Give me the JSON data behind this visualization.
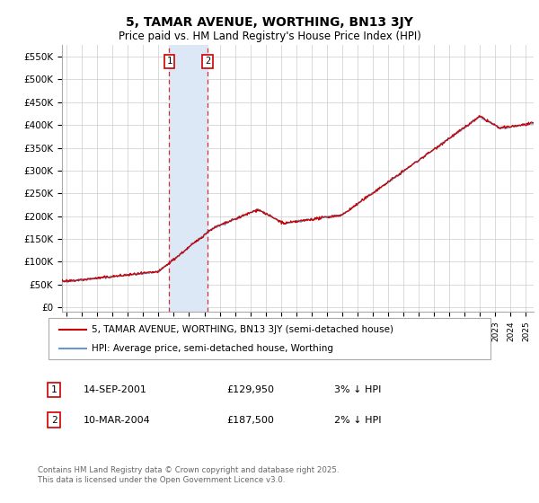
{
  "title": "5, TAMAR AVENUE, WORTHING, BN13 3JY",
  "subtitle": "Price paid vs. HM Land Registry's House Price Index (HPI)",
  "ylabel_ticks": [
    "£0",
    "£50K",
    "£100K",
    "£150K",
    "£200K",
    "£250K",
    "£300K",
    "£350K",
    "£400K",
    "£450K",
    "£500K",
    "£550K"
  ],
  "ytick_values": [
    0,
    50000,
    100000,
    150000,
    200000,
    250000,
    300000,
    350000,
    400000,
    450000,
    500000,
    550000
  ],
  "ymax": 575000,
  "ymin": -10000,
  "legend_line1": "5, TAMAR AVENUE, WORTHING, BN13 3JY (semi-detached house)",
  "legend_line2": "HPI: Average price, semi-detached house, Worthing",
  "sale1_date": "14-SEP-2001",
  "sale1_price": 129950,
  "sale1_note": "3% ↓ HPI",
  "sale2_date": "10-MAR-2004",
  "sale2_price": 187500,
  "sale2_note": "2% ↓ HPI",
  "footnote": "Contains HM Land Registry data © Crown copyright and database right 2025.\nThis data is licensed under the Open Government Licence v3.0.",
  "line_color_red": "#cc0000",
  "line_color_blue": "#6699cc",
  "highlight_color": "#dce8f5",
  "sale1_x": 2001.71,
  "sale2_x": 2004.21,
  "xmin": 1994.7,
  "xmax": 2025.5,
  "xtick_start": 1995,
  "xtick_end": 2025,
  "bg_color": "#ffffff"
}
